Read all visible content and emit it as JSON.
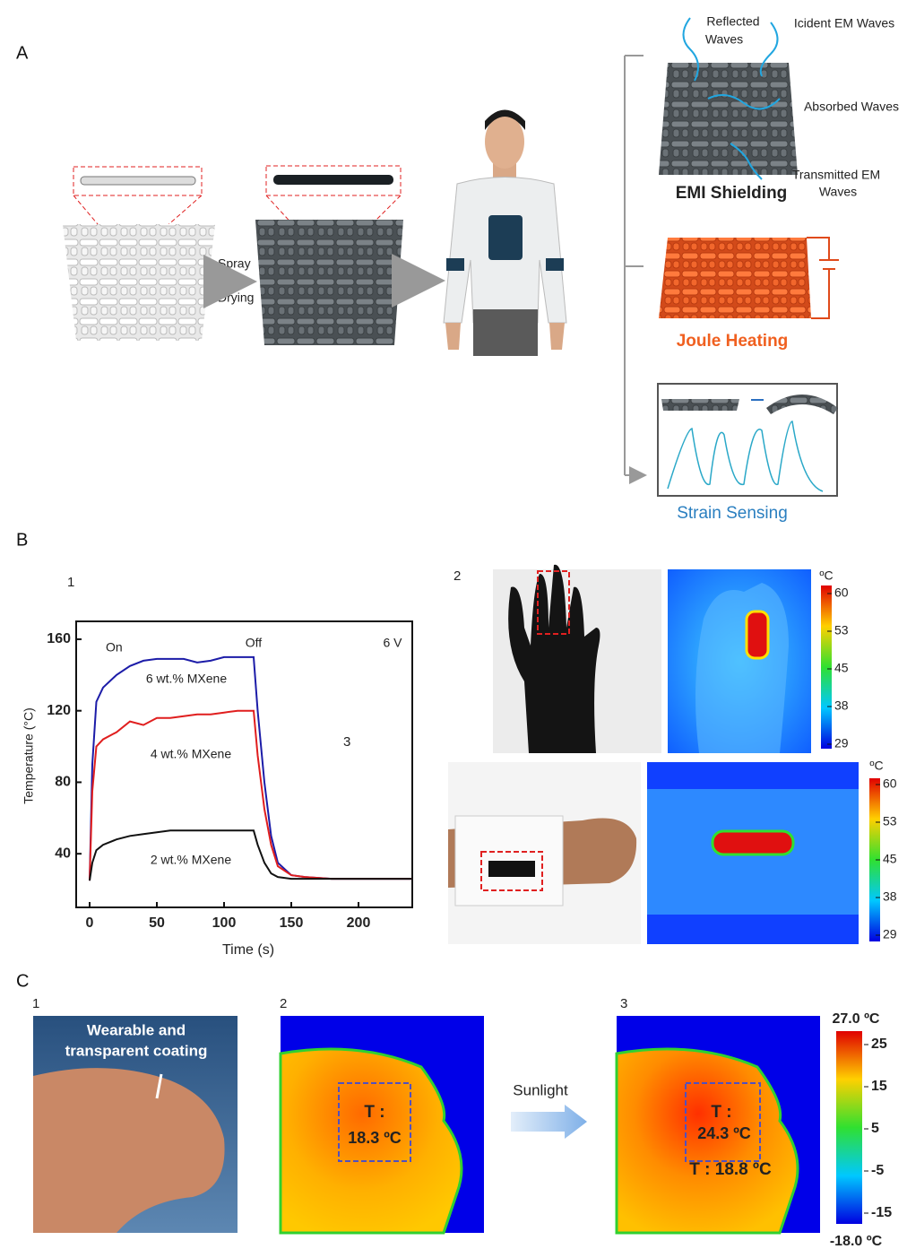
{
  "panel_a": {
    "label": "A",
    "spray": "Spray",
    "drying": "Drying",
    "reflected": [
      "Reflected",
      "Waves"
    ],
    "incident": "Icident EM Waves",
    "absorbed": "Absorbed Waves",
    "transmitted": [
      "Transmitted EM",
      "Waves"
    ],
    "emi": "EMI Shielding",
    "joule": "Joule Heating",
    "strain": "Strain Sensing"
  },
  "panel_b": {
    "label": "B",
    "sub1": "1",
    "sub2": "2",
    "sub3": "3",
    "colorbar_top": {
      "unit": "ºC",
      "ticks": [
        "60",
        "53",
        "45",
        "38",
        "29"
      ]
    },
    "colorbar_bottom": {
      "unit": "ºC",
      "ticks": [
        "60",
        "53",
        "45",
        "38",
        "29"
      ]
    }
  },
  "chart_data": {
    "type": "line",
    "xlabel": "Time (s)",
    "ylabel": "Temperature (°C)",
    "annotations": [
      "On",
      "Off",
      "6 V"
    ],
    "x": [
      0,
      2,
      5,
      10,
      20,
      30,
      40,
      50,
      60,
      70,
      80,
      90,
      100,
      110,
      120,
      122,
      125,
      130,
      135,
      140,
      150,
      160,
      180,
      200,
      220,
      240
    ],
    "series": [
      {
        "name": "6 wt.% MXene",
        "color": "#1c1ca8",
        "values": [
          25,
          90,
          125,
          133,
          140,
          145,
          148,
          149,
          149,
          149,
          147,
          148,
          150,
          150,
          150,
          150,
          120,
          80,
          50,
          35,
          28,
          27,
          26,
          26,
          26,
          26
        ]
      },
      {
        "name": "4 wt.% MXene",
        "color": "#e01e1e",
        "values": [
          25,
          75,
          100,
          104,
          108,
          114,
          112,
          116,
          116,
          117,
          118,
          118,
          119,
          120,
          120,
          120,
          95,
          65,
          45,
          33,
          28,
          27,
          26,
          26,
          26,
          26
        ]
      },
      {
        "name": "2 wt.% MXene",
        "color": "#111111",
        "values": [
          25,
          35,
          42,
          45,
          48,
          50,
          51,
          52,
          53,
          53,
          53,
          53,
          53,
          53,
          53,
          53,
          45,
          35,
          29,
          27,
          26,
          26,
          26,
          26,
          26,
          26
        ]
      }
    ],
    "xlim": [
      -10,
      240
    ],
    "xticks": [
      0,
      50,
      100,
      150,
      200
    ],
    "ylim": [
      10,
      170
    ],
    "yticks": [
      40,
      80,
      120,
      160
    ]
  },
  "panel_c": {
    "label": "C",
    "sub1": "1",
    "sub2": "2",
    "sub3": "3",
    "coating": [
      "Wearable and",
      "transparent coating"
    ],
    "sunlight": "Sunlight",
    "t_before": [
      "T :",
      "18.3 ºC"
    ],
    "t_after": [
      "T :",
      "24.3 ºC"
    ],
    "t_other": "T : 18.8 ºC",
    "colorbar": {
      "max": "27.0 ºC",
      "ticks": [
        "25",
        "15",
        "5",
        "-5",
        "-15"
      ],
      "min": "-18.0 ºC"
    }
  }
}
